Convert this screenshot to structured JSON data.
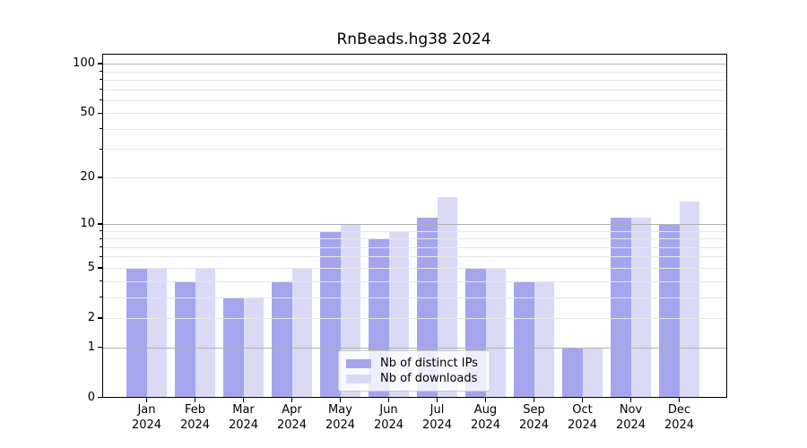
{
  "chart_data": {
    "type": "bar",
    "title": "RnBeads.hg38 2024",
    "categories": [
      "Jan",
      "Feb",
      "Mar",
      "Apr",
      "May",
      "Jun",
      "Jul",
      "Aug",
      "Sep",
      "Oct",
      "Nov",
      "Dec"
    ],
    "category_year": "2024",
    "series": [
      {
        "name": "Nb of distinct IPs",
        "values": [
          5,
          4,
          3,
          4,
          9,
          8,
          11,
          5,
          4,
          1,
          11,
          10
        ]
      },
      {
        "name": "Nb of downloads",
        "values": [
          5,
          5,
          3,
          5,
          10,
          9,
          15,
          5,
          4,
          1,
          11,
          14
        ]
      }
    ],
    "xlabel": "",
    "ylabel": "",
    "yscale": "log1p",
    "ylim": [
      0,
      114
    ],
    "ytick_labels": [
      0,
      1,
      2,
      5,
      10,
      20,
      50,
      100
    ],
    "major_gridlines": [
      1,
      10,
      100
    ],
    "minor_gridlines": [
      2,
      3,
      4,
      5,
      6,
      7,
      8,
      9,
      20,
      30,
      40,
      50,
      60,
      70,
      80,
      90
    ],
    "grid": true,
    "legend_position": "lower center"
  },
  "colors": {
    "bar_distinct_ips": "#a5a5ed",
    "bar_downloads": "#dadaf7",
    "grid_major": "#b0b0b0",
    "grid_minor": "#e7e7e7",
    "axis": "#000000",
    "legend_border": "#cccccc",
    "legend_background": "rgba(255,255,255,0.8)"
  }
}
